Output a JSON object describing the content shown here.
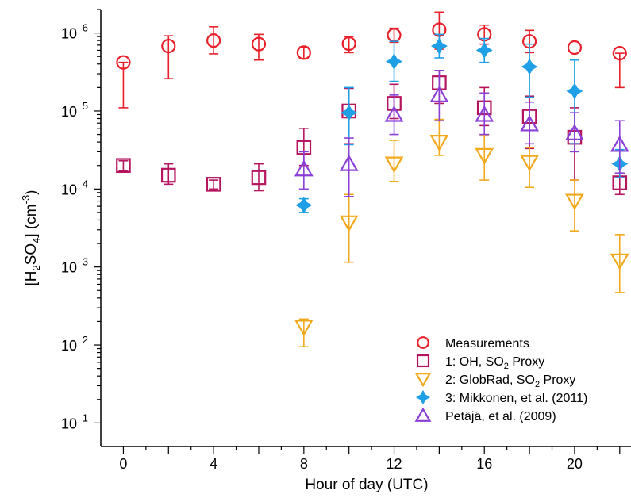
{
  "chart_data": {
    "type": "scatter",
    "xlabel": "Hour of day (UTC)",
    "ylabel": {
      "pre": "[H",
      "sub1": "2",
      "mid": "SO",
      "sub2": "4",
      "post": "] (cm",
      "sup": "-3",
      "end": ")"
    },
    "xlim": [
      -1,
      22.5
    ],
    "ylim": [
      5,
      2000000
    ],
    "yscale": "log",
    "x_ticks": [
      0,
      4,
      8,
      12,
      16,
      20
    ],
    "x_tick_labels": [
      "0",
      "4",
      "8",
      "12",
      "16",
      "20"
    ],
    "y_ticks": [
      10,
      100,
      1000,
      10000,
      100000,
      1000000
    ],
    "y_tick_labels": [
      {
        "base": "10",
        "exp": "1"
      },
      {
        "base": "10",
        "exp": "2"
      },
      {
        "base": "10",
        "exp": "3"
      },
      {
        "base": "10",
        "exp": "4"
      },
      {
        "base": "10",
        "exp": "5"
      },
      {
        "base": "10",
        "exp": "6"
      }
    ],
    "legend_position": "bottom-right",
    "series": [
      {
        "name": "Measurements",
        "legend": {
          "pre": "Measurements",
          "sub": "",
          "post": ""
        },
        "marker": "circle",
        "color": "#e8202a",
        "points": [
          {
            "x": 0,
            "y": 420000,
            "lo": 110000,
            "hi": 420000
          },
          {
            "x": 2,
            "y": 680000,
            "lo": 260000,
            "hi": 920000
          },
          {
            "x": 4,
            "y": 800000,
            "lo": 540000,
            "hi": 1200000
          },
          {
            "x": 6,
            "y": 720000,
            "lo": 450000,
            "hi": 960000
          },
          {
            "x": 8,
            "y": 560000,
            "lo": 470000,
            "hi": 660000
          },
          {
            "x": 10,
            "y": 730000,
            "lo": 560000,
            "hi": 900000
          },
          {
            "x": 12,
            "y": 940000,
            "lo": 760000,
            "hi": 1150000
          },
          {
            "x": 14,
            "y": 1100000,
            "lo": 620000,
            "hi": 1850000
          },
          {
            "x": 16,
            "y": 960000,
            "lo": 720000,
            "hi": 1260000
          },
          {
            "x": 18,
            "y": 780000,
            "lo": 560000,
            "hi": 1080000
          },
          {
            "x": 20,
            "y": 650000,
            "lo": 650000,
            "hi": 650000
          },
          {
            "x": 22,
            "y": 550000,
            "lo": 200000,
            "hi": 550000
          }
        ]
      },
      {
        "name": "1: OH, SO2 Proxy",
        "legend": {
          "pre": "1: OH, SO",
          "sub": "2",
          "post": " Proxy"
        },
        "marker": "square",
        "color": "#b5155f",
        "points": [
          {
            "x": 0,
            "y": 20000,
            "lo": 17000,
            "hi": 23000
          },
          {
            "x": 2,
            "y": 15000,
            "lo": 11500,
            "hi": 21000
          },
          {
            "x": 4,
            "y": 11500,
            "lo": 10000,
            "hi": 13000
          },
          {
            "x": 6,
            "y": 14000,
            "lo": 9500,
            "hi": 21000
          },
          {
            "x": 8,
            "y": 34000,
            "lo": 20000,
            "hi": 60000
          },
          {
            "x": 10,
            "y": 100000,
            "lo": 38000,
            "hi": 195000
          },
          {
            "x": 12,
            "y": 125000,
            "lo": 80000,
            "hi": 220000
          },
          {
            "x": 14,
            "y": 230000,
            "lo": 125000,
            "hi": 330000
          },
          {
            "x": 16,
            "y": 110000,
            "lo": 65000,
            "hi": 200000
          },
          {
            "x": 18,
            "y": 85000,
            "lo": 33000,
            "hi": 155000
          },
          {
            "x": 20,
            "y": 46000,
            "lo": 13000,
            "hi": 110000
          },
          {
            "x": 22,
            "y": 12000,
            "lo": 8500,
            "hi": 16000
          }
        ]
      },
      {
        "name": "2: GlobRad, SO2 Proxy",
        "legend": {
          "pre": "2: GlobRad, SO",
          "sub": "2",
          "post": " Proxy"
        },
        "marker": "triangle-down",
        "color": "#f2a91c",
        "points": [
          {
            "x": 8,
            "y": 170,
            "lo": 95,
            "hi": 215
          },
          {
            "x": 10,
            "y": 3700,
            "lo": 1150,
            "hi": 8500
          },
          {
            "x": 12,
            "y": 21000,
            "lo": 12500,
            "hi": 42000
          },
          {
            "x": 14,
            "y": 40000,
            "lo": 27000,
            "hi": 78000
          },
          {
            "x": 16,
            "y": 27000,
            "lo": 13000,
            "hi": 48000
          },
          {
            "x": 18,
            "y": 22000,
            "lo": 10500,
            "hi": 34000
          },
          {
            "x": 20,
            "y": 7000,
            "lo": 2900,
            "hi": 13000
          },
          {
            "x": 22,
            "y": 1200,
            "lo": 470,
            "hi": 2600
          }
        ]
      },
      {
        "name": "3: Mikkonen, et al. (2011)",
        "legend": {
          "pre": "3: Mikkonen, et al. (2011)",
          "sub": "",
          "post": ""
        },
        "marker": "diamond-star",
        "color": "#1e9fe6",
        "points": [
          {
            "x": 8,
            "y": 6200,
            "lo": 5000,
            "hi": 7500
          },
          {
            "x": 10,
            "y": 95000,
            "lo": 37000,
            "hi": 200000
          },
          {
            "x": 12,
            "y": 430000,
            "lo": 240000,
            "hi": 780000
          },
          {
            "x": 14,
            "y": 680000,
            "lo": 480000,
            "hi": 960000
          },
          {
            "x": 16,
            "y": 600000,
            "lo": 420000,
            "hi": 850000
          },
          {
            "x": 18,
            "y": 370000,
            "lo": 150000,
            "hi": 720000
          },
          {
            "x": 20,
            "y": 180000,
            "lo": 38000,
            "hi": 450000
          },
          {
            "x": 22,
            "y": 21000,
            "lo": 14000,
            "hi": 32000
          }
        ]
      },
      {
        "name": "Petäjä, et al. (2009)",
        "legend": {
          "pre": "Petäjä, et al. (2009)",
          "sub": "",
          "post": ""
        },
        "marker": "triangle-up",
        "color": "#8a3fd6",
        "points": [
          {
            "x": 8,
            "y": 18000,
            "lo": 10000,
            "hi": 30000
          },
          {
            "x": 10,
            "y": 21000,
            "lo": 8000,
            "hi": 45000
          },
          {
            "x": 12,
            "y": 90000,
            "lo": 50000,
            "hi": 160000
          },
          {
            "x": 14,
            "y": 160000,
            "lo": 75000,
            "hi": 330000
          },
          {
            "x": 16,
            "y": 90000,
            "lo": 50000,
            "hi": 170000
          },
          {
            "x": 18,
            "y": 68000,
            "lo": 38000,
            "hi": 130000
          },
          {
            "x": 20,
            "y": 52000,
            "lo": 30000,
            "hi": 95000
          },
          {
            "x": 22,
            "y": 37000,
            "lo": 16000,
            "hi": 75000
          }
        ]
      }
    ]
  }
}
